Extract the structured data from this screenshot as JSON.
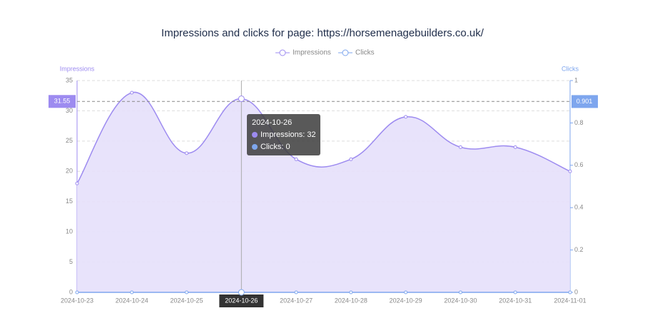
{
  "chart_data": {
    "type": "line",
    "title": "Impressions and clicks for page: https://horsemenagebuilders.co.uk/",
    "categories": [
      "2024-10-23",
      "2024-10-24",
      "2024-10-25",
      "2024-10-26",
      "2024-10-27",
      "2024-10-28",
      "2024-10-29",
      "2024-10-30",
      "2024-10-31",
      "2024-11-01"
    ],
    "series": [
      {
        "name": "Impressions",
        "color": "#9d8bf0",
        "area_color": "#e5e0fb",
        "values": [
          18,
          33,
          23,
          32,
          22,
          22,
          29,
          24,
          24,
          20
        ]
      },
      {
        "name": "Clicks",
        "color": "#7ea6ee",
        "axis": "y2",
        "values": [
          0,
          0,
          0,
          0,
          0,
          0,
          0,
          0,
          0,
          0
        ]
      }
    ],
    "y_label": "Impressions",
    "y2_label": "Clicks",
    "ylim": [
      0,
      35
    ],
    "yticks": [
      0,
      5,
      10,
      15,
      20,
      25,
      30,
      35
    ],
    "y2lim": [
      0,
      1
    ],
    "y2ticks": [
      0,
      0.2,
      0.4,
      0.6,
      0.8,
      1
    ],
    "grid": true,
    "legend": "top",
    "crosshair": {
      "x": "2024-10-26",
      "y": 31.55,
      "y2": 0.901
    },
    "tooltip": {
      "title": "2024-10-26",
      "lines": [
        "Impressions: 32",
        "Clicks: 0"
      ]
    }
  }
}
